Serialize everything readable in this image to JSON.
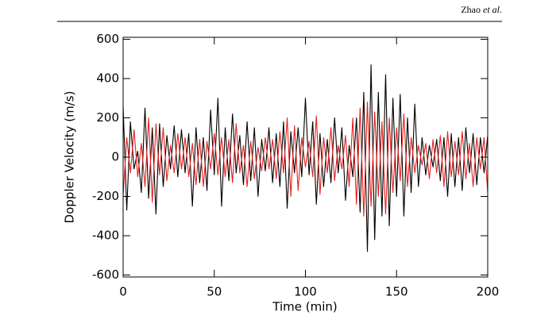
{
  "header": {
    "author": "Zhao",
    "etal": "et al."
  },
  "chart_data": {
    "type": "line",
    "xlabel": "Time (min)",
    "ylabel": "Doppler Velocity (m/s)",
    "xlim": [
      0,
      200
    ],
    "ylim": [
      -610,
      610
    ],
    "xticks": [
      0,
      50,
      100,
      150,
      200
    ],
    "yticks": [
      -600,
      -400,
      -200,
      0,
      200,
      400,
      600
    ],
    "x": [
      0,
      2,
      4,
      6,
      8,
      10,
      12,
      14,
      16,
      18,
      20,
      22,
      24,
      26,
      28,
      30,
      32,
      34,
      36,
      38,
      40,
      42,
      44,
      46,
      48,
      50,
      52,
      54,
      56,
      58,
      60,
      62,
      64,
      66,
      68,
      70,
      72,
      74,
      76,
      78,
      80,
      82,
      84,
      86,
      88,
      90,
      92,
      94,
      96,
      98,
      100,
      102,
      104,
      106,
      108,
      110,
      112,
      114,
      116,
      118,
      120,
      122,
      124,
      126,
      128,
      130,
      132,
      134,
      136,
      138,
      140,
      142,
      144,
      146,
      148,
      150,
      152,
      154,
      156,
      158,
      160,
      162,
      164,
      166,
      168,
      170,
      172,
      174,
      176,
      178,
      180,
      182,
      184,
      186,
      188,
      190,
      192,
      194,
      196,
      198,
      200
    ],
    "series": [
      {
        "color": "#000000",
        "values": [
          260,
          -270,
          180,
          -60,
          30,
          -180,
          250,
          -210,
          150,
          -290,
          170,
          -150,
          110,
          -60,
          160,
          -100,
          140,
          -80,
          120,
          -250,
          150,
          -130,
          100,
          -170,
          240,
          -90,
          300,
          -250,
          150,
          -120,
          220,
          -80,
          110,
          -140,
          180,
          -120,
          150,
          -200,
          90,
          -70,
          150,
          -130,
          120,
          -150,
          180,
          -260,
          130,
          -80,
          150,
          -100,
          300,
          -90,
          180,
          -240,
          120,
          -150,
          90,
          -130,
          200,
          -80,
          150,
          -220,
          60,
          -100,
          200,
          -280,
          330,
          -480,
          470,
          -420,
          330,
          -300,
          420,
          -350,
          300,
          -200,
          320,
          -300,
          200,
          -180,
          270,
          -150,
          100,
          -90,
          60,
          -50,
          90,
          -120,
          100,
          -200,
          120,
          -150,
          100,
          -170,
          150,
          -80,
          120,
          -140,
          100,
          -80,
          110
        ]
      },
      {
        "color": "#e8201e",
        "values": [
          -200,
          100,
          -80,
          140,
          -100,
          70,
          -150,
          200,
          -230,
          170,
          -90,
          150,
          -120,
          60,
          -80,
          120,
          -60,
          100,
          -100,
          70,
          -140,
          90,
          -150,
          80,
          -60,
          120,
          -90,
          100,
          -100,
          90,
          -130,
          170,
          -80,
          60,
          -150,
          80,
          -110,
          50,
          -70,
          100,
          -60,
          90,
          -110,
          130,
          -80,
          200,
          -200,
          160,
          -170,
          100,
          -50,
          80,
          -100,
          210,
          -190,
          100,
          -80,
          150,
          -120,
          60,
          -60,
          110,
          -150,
          200,
          -240,
          250,
          -300,
          280,
          -250,
          230,
          -200,
          180,
          -290,
          200,
          -180,
          150,
          -120,
          220,
          -150,
          100,
          -80,
          60,
          -40,
          70,
          -110,
          90,
          -80,
          110,
          -150,
          130,
          -100,
          80,
          -90,
          130,
          -110,
          70,
          -150,
          100,
          -60,
          100,
          -180
        ]
      }
    ]
  }
}
